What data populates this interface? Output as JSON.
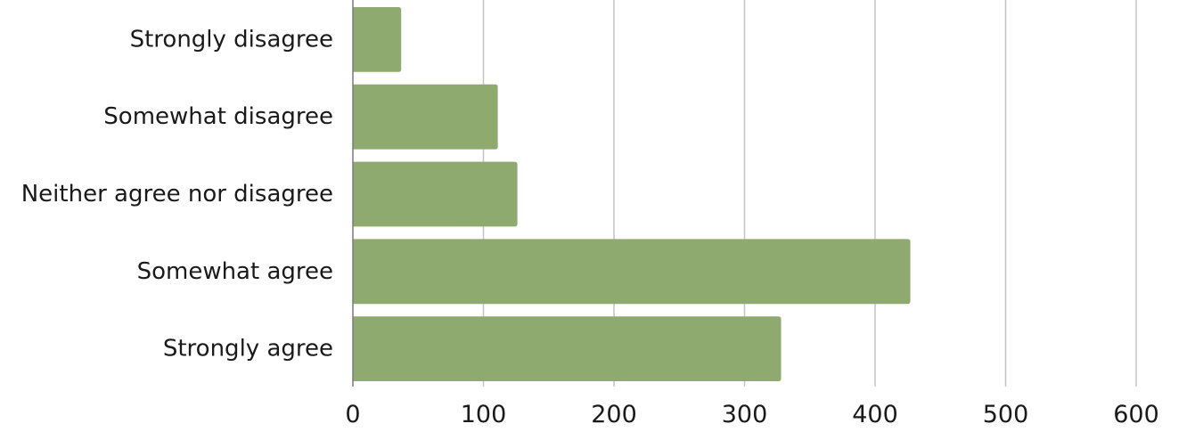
{
  "chart_data": {
    "type": "bar",
    "orientation": "horizontal",
    "title": "",
    "xlabel": "",
    "ylabel": "",
    "categories": [
      "Strongly disagree",
      "Somewhat disagree",
      "Neither agree nor disagree",
      "Somewhat agree",
      "Strongly agree"
    ],
    "values": [
      37,
      111,
      126,
      427,
      328
    ],
    "xlim": [
      0,
      600
    ],
    "xticks": [
      "0",
      "100",
      "200",
      "300",
      "400",
      "500",
      "600"
    ],
    "grid": true,
    "legend": "none",
    "bar_color": "#8faa6e"
  }
}
